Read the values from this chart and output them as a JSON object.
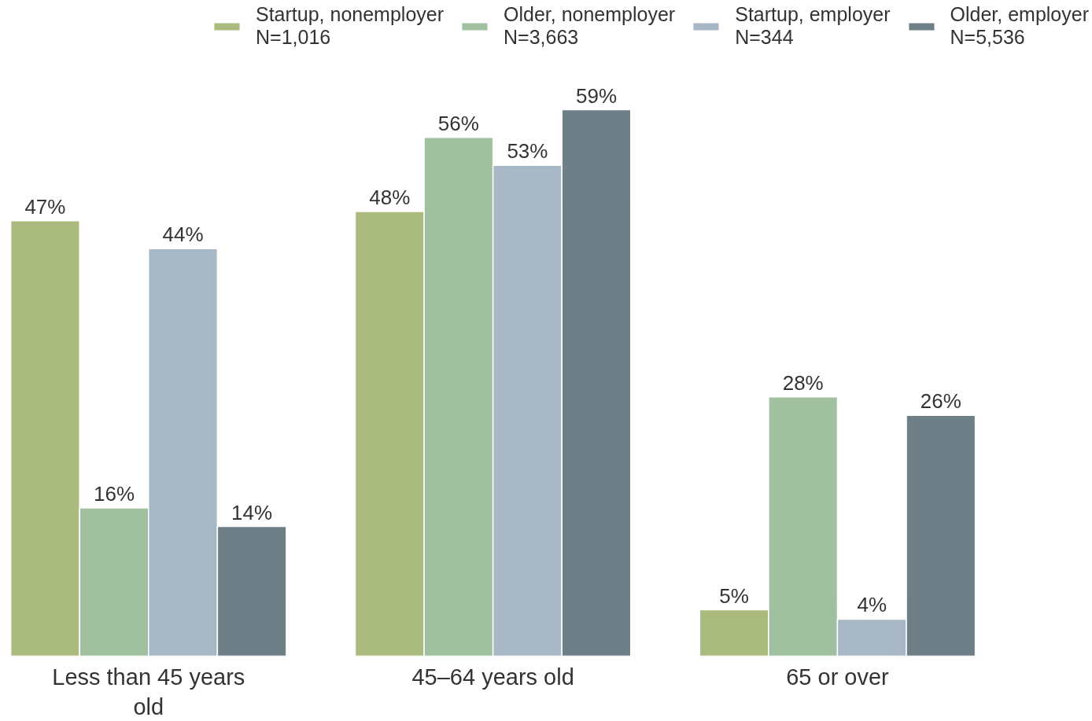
{
  "chart_data": {
    "type": "bar",
    "categories": [
      "Less than 45 years old",
      "45–64 years old",
      "65 or over"
    ],
    "series": [
      {
        "name": "Startup, nonemployer\nN=1,016",
        "color": "#abbb7e",
        "values": [
          47,
          48,
          5
        ],
        "value_labels": [
          "47%",
          "48%",
          "5%"
        ]
      },
      {
        "name": "Older, nonemployer\nN=3,663",
        "color": "#a0c09f",
        "values": [
          16,
          56,
          28
        ],
        "value_labels": [
          "16%",
          "56%",
          "28%"
        ]
      },
      {
        "name": "Startup, employer\nN=344",
        "color": "#a7b7c6",
        "values": [
          44,
          53,
          4
        ],
        "value_labels": [
          "44%",
          "53%",
          "4%"
        ]
      },
      {
        "name": "Older, employer\nN=5,536",
        "color": "#6f7f88",
        "values": [
          14,
          59,
          26
        ],
        "value_labels": [
          "14%",
          "59%",
          "26%"
        ]
      }
    ],
    "legend": "top right"
  }
}
